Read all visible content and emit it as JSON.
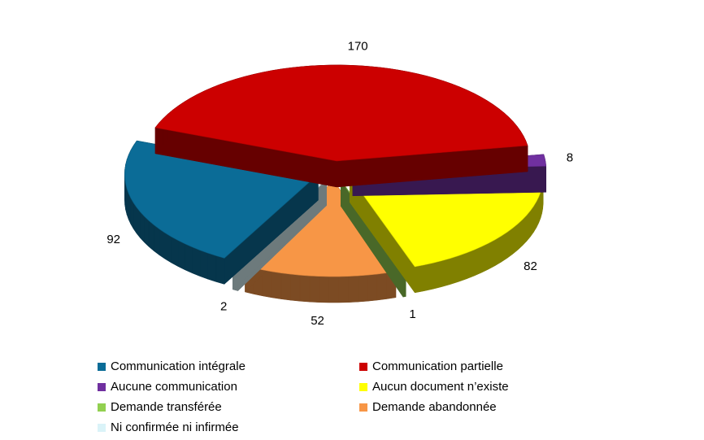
{
  "chart_data": {
    "type": "pie3d",
    "categories": [
      "Communication intégrale",
      "Communication partielle",
      "Aucune communication",
      "Aucun document n’existe",
      "Demande transférée",
      "Demande abandonnée",
      "Ni confirmée ni infirmée"
    ],
    "values": [
      92,
      170,
      8,
      82,
      1,
      52,
      2
    ],
    "colors": [
      "#0b6c97",
      "#cc0000",
      "#7030a0",
      "#ffff00",
      "#92d050",
      "#f79646",
      "#daf3f8"
    ]
  }
}
